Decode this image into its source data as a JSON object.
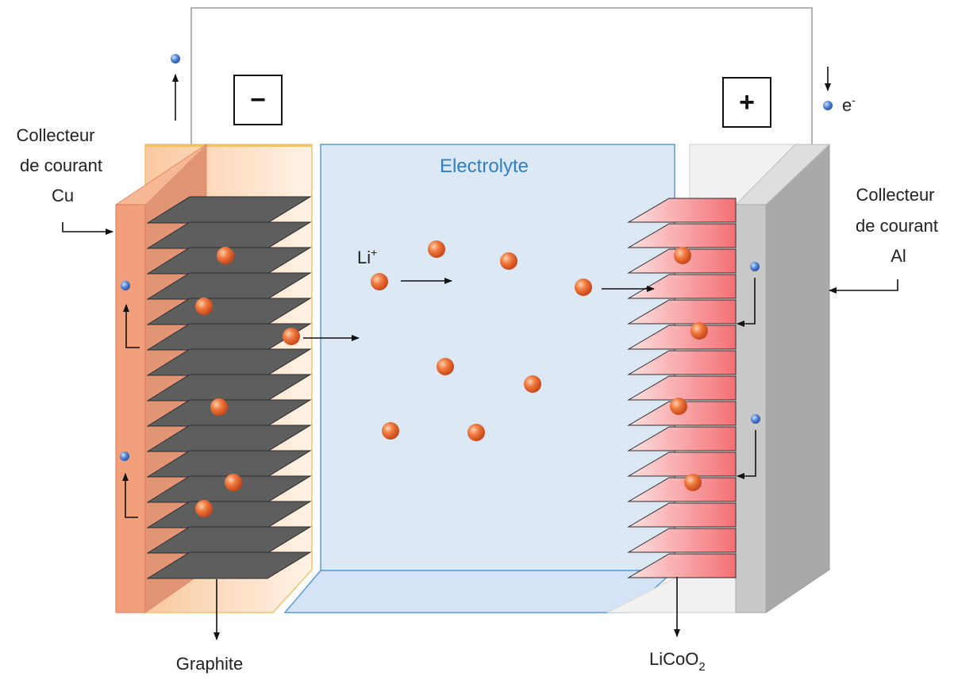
{
  "labels": {
    "collector_cu": [
      "Collecteur",
      "de courant",
      "Cu"
    ],
    "collector_al": [
      "Collecteur",
      "de courant",
      "Al"
    ],
    "electrolyte": "Electrolyte",
    "graphite": "Graphite",
    "licoo2_main": "LiCoO",
    "licoo2_sub": "2",
    "li_ion_main": "Li",
    "li_ion_sup": "+",
    "electron_main": "e",
    "electron_sup": "-",
    "negative_terminal": "−",
    "positive_terminal": "+"
  },
  "colors": {
    "copper": "#f0a27a",
    "copper_dark": "#e88460",
    "graphite_sheet": "#5a5a5a",
    "electrolyte_fill": "#dde8f5",
    "electrolyte_border": "#5b9bd5",
    "cathode_pink": "#f47c7c",
    "aluminium": "#c8c8c8",
    "li_ion": "#e8642a",
    "electron": "#4a7fd0",
    "wire": "#9a9a9a"
  }
}
